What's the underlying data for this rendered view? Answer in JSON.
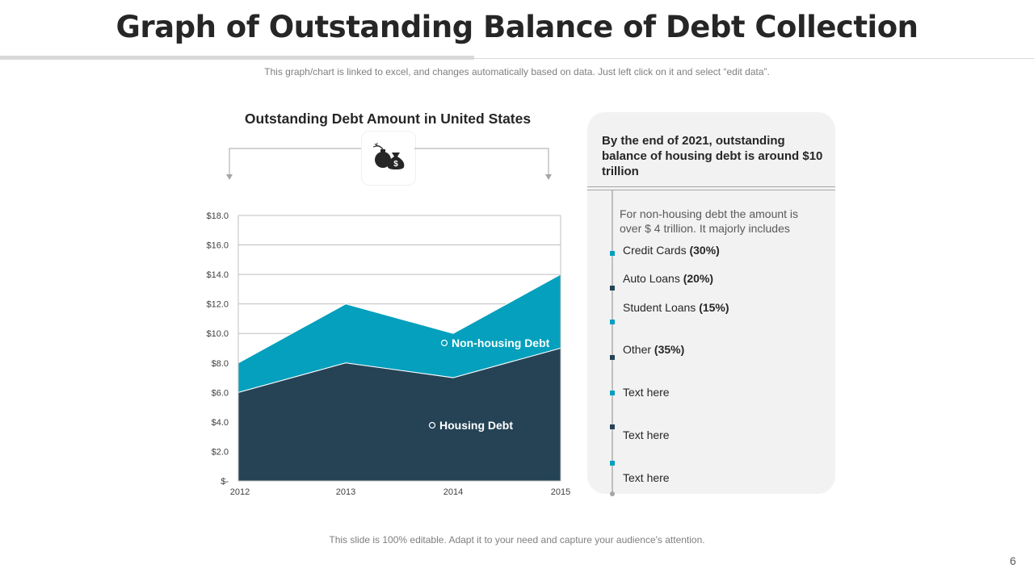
{
  "slide": {
    "title": "Graph of Outstanding Balance of Debt Collection",
    "subtitle": "This graph/chart is linked to excel, and changes automatically based on data. Just left click on it and select “edit data”.",
    "footer": "This slide is 100% editable. Adapt it to your need and capture your audience's attention.",
    "page_number": "6"
  },
  "chart_data": {
    "type": "area",
    "stacked": true,
    "title": "Outstanding Debt Amount in United States",
    "x": [
      "2012",
      "2013",
      "2014",
      "2015"
    ],
    "series": [
      {
        "name": "Housing Debt",
        "values": [
          6.0,
          8.0,
          7.0,
          9.0
        ],
        "color": "#264356"
      },
      {
        "name": "Non-housing Debt",
        "values": [
          2.0,
          4.0,
          3.0,
          5.0
        ],
        "color": "#04a0bd"
      }
    ],
    "yticks": [
      "$-",
      "$2.0",
      "$4.0",
      "$6.0",
      "$8.0",
      "$10.0",
      "$12.0",
      "$14.0",
      "$16.0",
      "$18.0"
    ],
    "ylim": [
      0,
      18
    ],
    "grid": true,
    "icon": "bomb-and-money-bag-icon"
  },
  "panel": {
    "headline": "By the end of 2021, outstanding balance of housing debt is around $10 trillion",
    "description": "For non-housing debt the amount is over $ 4 trillion. It majorly includes",
    "items": [
      {
        "label": "Credit Cards",
        "value": "(30%)"
      },
      {
        "label": "Auto Loans",
        "value": "(20%)"
      },
      {
        "label": "Student Loans",
        "value": "(15%)"
      },
      {
        "label": "Other",
        "value": "(35%)"
      },
      {
        "label": "Text here",
        "value": ""
      },
      {
        "label": "Text here",
        "value": ""
      },
      {
        "label": "Text here",
        "value": ""
      }
    ],
    "marker_colors": [
      "#04a0bd",
      "#264356"
    ]
  }
}
